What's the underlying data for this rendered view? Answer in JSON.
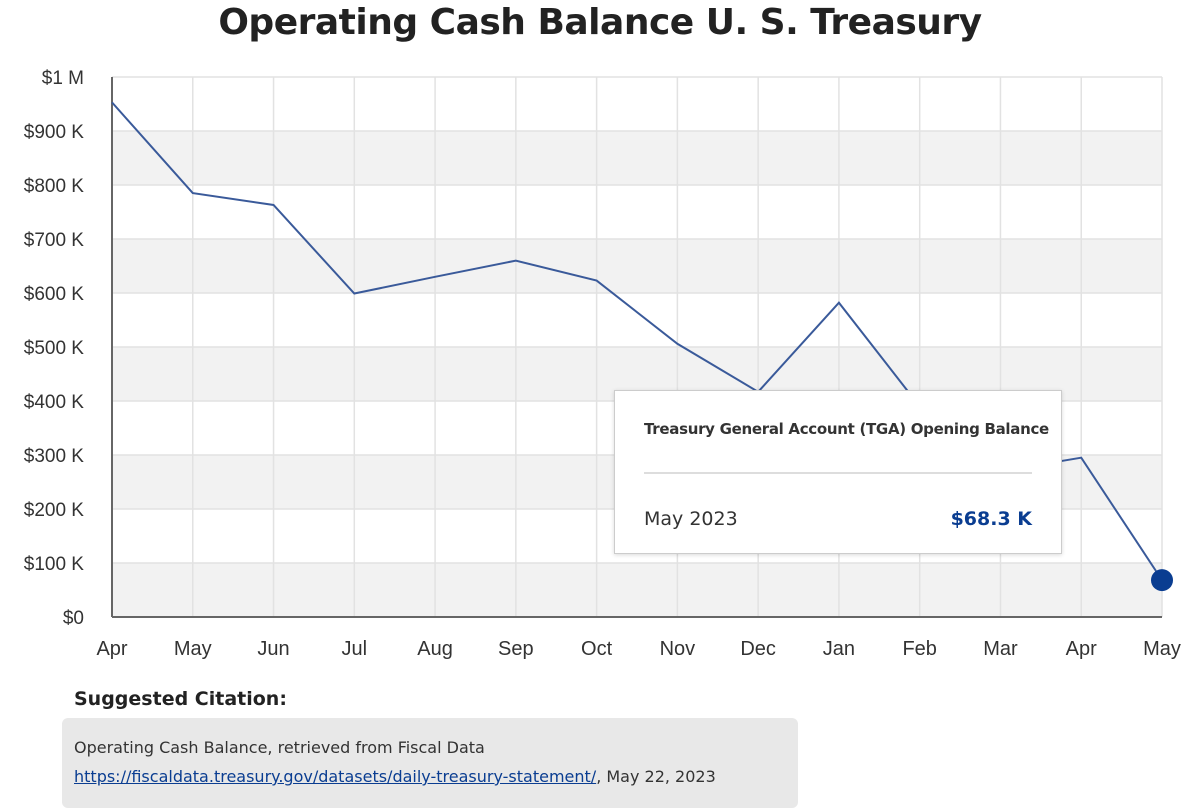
{
  "chart_data": {
    "type": "line",
    "title": "Operating Cash Balance U. S. Treasury",
    "categories": [
      "Apr",
      "May",
      "Jun",
      "Jul",
      "Aug",
      "Sep",
      "Oct",
      "Nov",
      "Dec",
      "Jan",
      "Feb",
      "Mar",
      "Apr",
      "May"
    ],
    "values": [
      953,
      785,
      763,
      599,
      630,
      660,
      623,
      506,
      417,
      582,
      390,
      270,
      295,
      68.3
    ],
    "value_unit": "thousands of dollars",
    "ylim": [
      0,
      1000
    ],
    "yticks": [
      0,
      100,
      200,
      300,
      400,
      500,
      600,
      700,
      800,
      900,
      1000
    ],
    "ytick_labels": [
      "$0",
      "$100 K",
      "$200 K",
      "$300 K",
      "$400 K",
      "$500 K",
      "$600 K",
      "$700 K",
      "$800 K",
      "$900 K",
      "$1 M"
    ],
    "grid": true,
    "line_color": "#3a5a9a",
    "highlight_color": "#0a3d91",
    "band_color": "#f2f2f2"
  },
  "tooltip": {
    "title": "Treasury General Account (TGA) Opening Balance",
    "date": "May 2023",
    "value": "$68.3 K"
  },
  "citation": {
    "label": "Suggested Citation:",
    "line1": "Operating Cash Balance, retrieved from Fiscal Data",
    "link": "https://fiscaldata.treasury.gov/datasets/daily-treasury-statement/",
    "suffix": ", May 22, 2023"
  }
}
